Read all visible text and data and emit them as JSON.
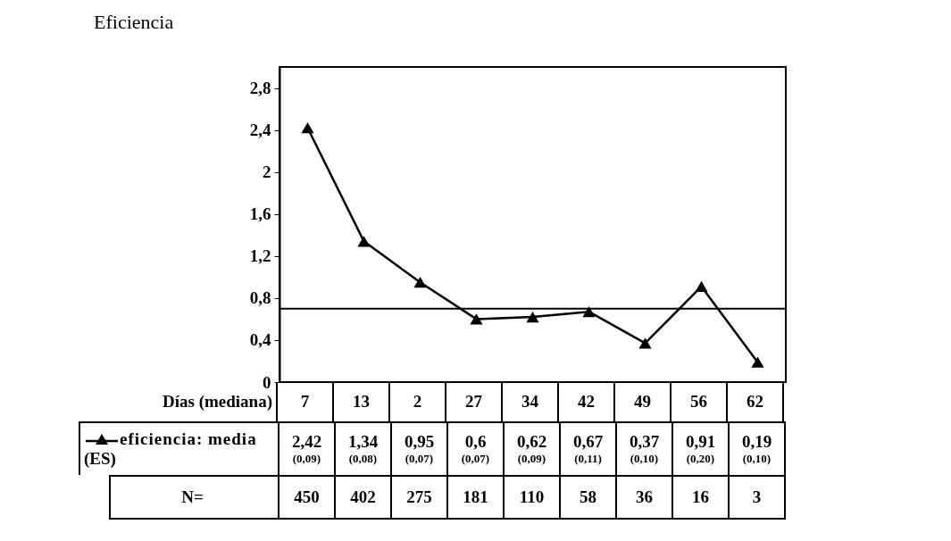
{
  "chart_data": {
    "type": "line",
    "title": "Eficiencia",
    "xlabel": "Días (mediana)",
    "categories": [
      "7",
      "13",
      "2",
      "27",
      "34",
      "42",
      "49",
      "56",
      "62"
    ],
    "series": [
      {
        "name": "eficiencia: media",
        "color": "#000000",
        "values": [
          2.42,
          1.34,
          0.95,
          0.6,
          0.62,
          0.67,
          0.37,
          0.91,
          0.19
        ]
      }
    ],
    "value_labels": [
      "2,42",
      "1,34",
      "0,95",
      "0,6",
      "0,62",
      "0,67",
      "0,37",
      "0,91",
      "0,19"
    ],
    "annotations": [
      "(ES)",
      "(0,09)",
      "(0,08)",
      "(0,07)",
      "(0,07)",
      "(0,09)",
      "(0,11)",
      "(0,10)",
      "(0,20)",
      "(0,10)",
      "N=",
      "450",
      "402",
      "275",
      "181",
      "110",
      "58",
      "36",
      "16",
      "3"
    ],
    "ylim": [
      0,
      3
    ],
    "yticks": [
      0,
      {
        "value": 0.4,
        "label": "0,4"
      },
      {
        "value": 0.8,
        "label": "0,8"
      },
      {
        "value": 1.2,
        "label": "1,2"
      },
      {
        "value": 1.6,
        "label": "1,6"
      },
      2,
      {
        "value": 2.4,
        "label": "2,4"
      },
      {
        "value": 2.8,
        "label": "2,8"
      }
    ],
    "ref_lines": [
      {
        "axis": "y",
        "value": 0.7
      }
    ],
    "marker": "triangle",
    "line_style": "solid",
    "legend": "bottom left",
    "grid": false
  }
}
